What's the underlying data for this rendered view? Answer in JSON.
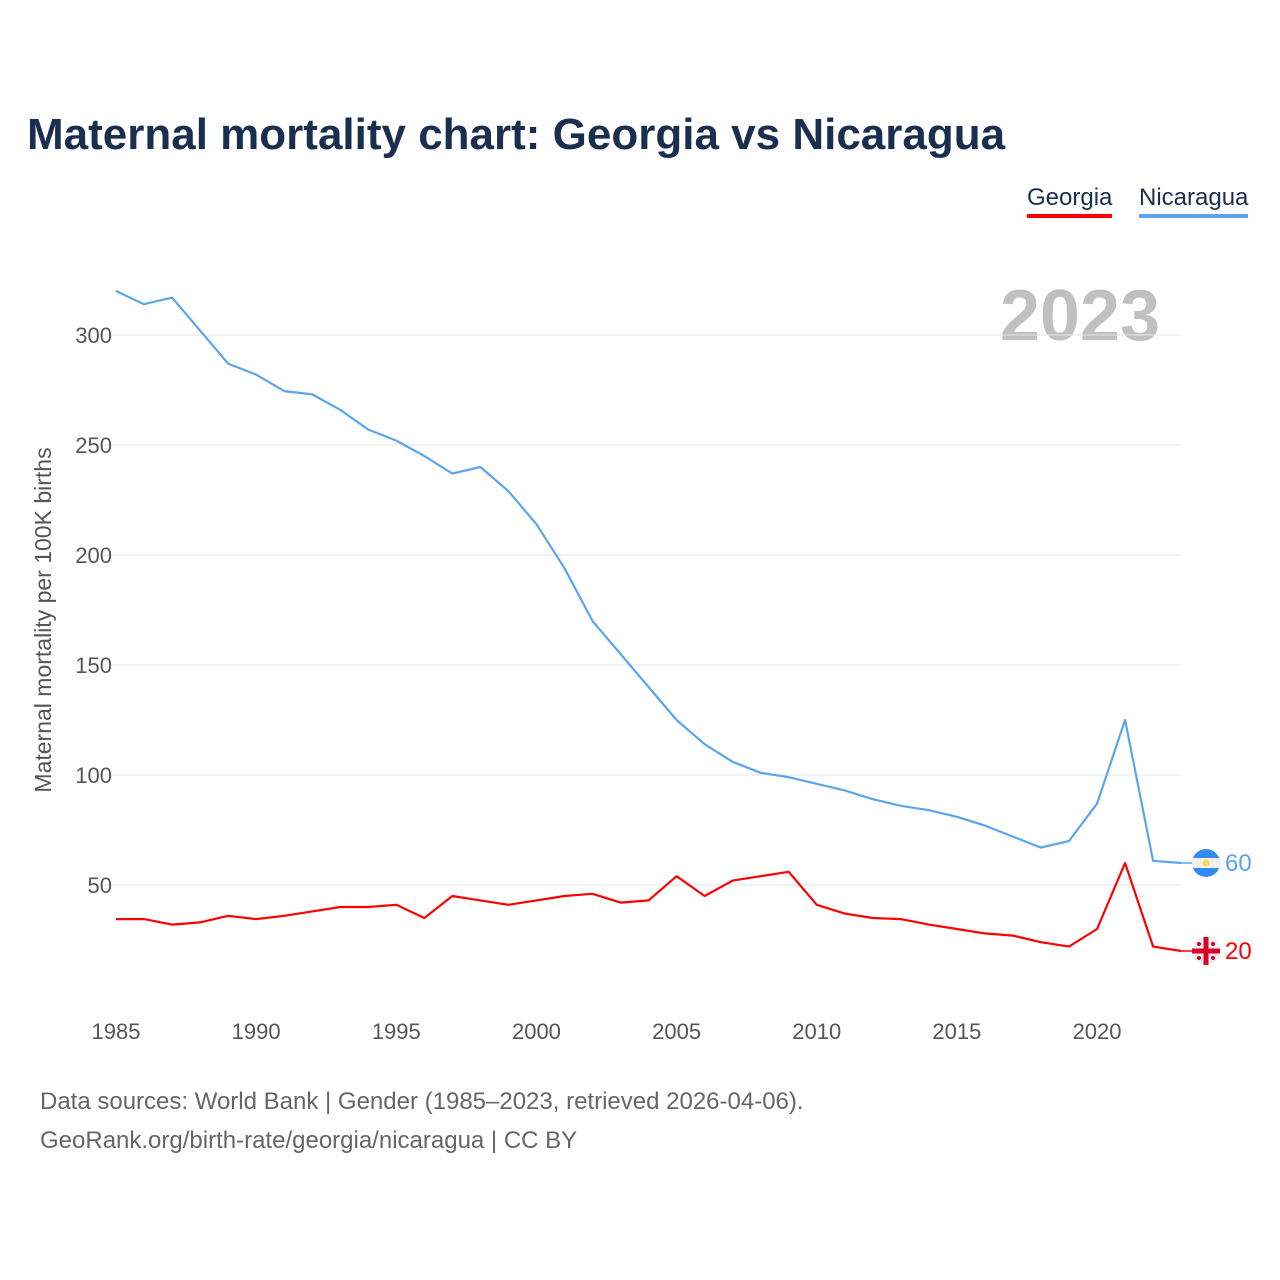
{
  "chart_data": {
    "type": "line",
    "title": "Maternal mortality chart: Georgia vs Nicaragua",
    "xlabel": "",
    "ylabel": "Maternal mortality per 100K births",
    "year_label": "2023",
    "xlim": [
      1985,
      2023
    ],
    "ylim": [
      0,
      330
    ],
    "x_ticks": [
      1985,
      1990,
      1995,
      2000,
      2005,
      2010,
      2015,
      2020
    ],
    "y_ticks": [
      50,
      100,
      150,
      200,
      250,
      300
    ],
    "grid": true,
    "legend_position": "top-right",
    "x": [
      1985,
      1986,
      1987,
      1988,
      1989,
      1990,
      1991,
      1992,
      1993,
      1994,
      1995,
      1996,
      1997,
      1998,
      1999,
      2000,
      2001,
      2002,
      2003,
      2004,
      2005,
      2006,
      2007,
      2008,
      2009,
      2010,
      2011,
      2012,
      2013,
      2014,
      2015,
      2016,
      2017,
      2018,
      2019,
      2020,
      2021,
      2022,
      2023
    ],
    "series": [
      {
        "name": "Georgia",
        "color": "#ff0000",
        "end_label": "20",
        "flag": "georgia-flag",
        "values": [
          34.5,
          34.5,
          32,
          33,
          36,
          34.5,
          36,
          38,
          40,
          40,
          41,
          35,
          45,
          43,
          41,
          43,
          45,
          46,
          42,
          43,
          54,
          45,
          52,
          54,
          56,
          41,
          37,
          35,
          34.5,
          32,
          30,
          28,
          27,
          24,
          22,
          30,
          60,
          22,
          20
        ]
      },
      {
        "name": "Nicaragua",
        "color": "#5aa5ec",
        "end_label": "60",
        "flag": "nicaragua-flag",
        "values": [
          320,
          314,
          317,
          302,
          287,
          282,
          274.5,
          273,
          266,
          257,
          252,
          245,
          237,
          240,
          229,
          214,
          194,
          170,
          155,
          140,
          125,
          114,
          106,
          101,
          99,
          96,
          93,
          89,
          86,
          84,
          81,
          77,
          72,
          67,
          70,
          87,
          125,
          61,
          60
        ]
      }
    ]
  },
  "footer": {
    "line1": "Data sources: World Bank | Gender (1985–2023, retrieved 2026-04-06).",
    "line2": "GeoRank.org/birth-rate/georgia/nicaragua | CC BY"
  }
}
